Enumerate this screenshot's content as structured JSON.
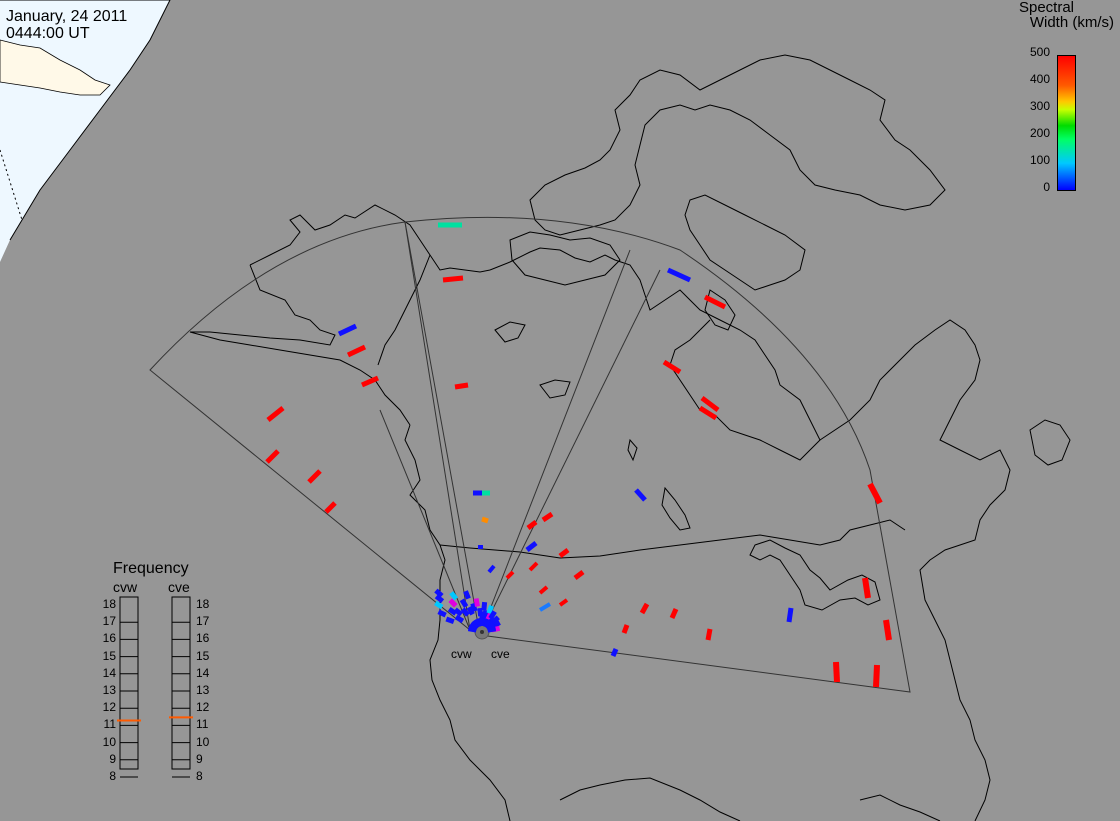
{
  "header": {
    "date": "January, 24 2011",
    "time": "0444:00 UT"
  },
  "legend": {
    "title_line1": "Spectral",
    "title_line2": "Width (km/s)",
    "ticks": [
      "500",
      "400",
      "300",
      "200",
      "100",
      "0"
    ],
    "range": [
      0,
      500
    ]
  },
  "frequency": {
    "title": "Frequency",
    "radars": [
      "cvw",
      "cve"
    ],
    "ticks": [
      "18",
      "17",
      "16",
      "15",
      "14",
      "13",
      "12",
      "11",
      "10",
      "9",
      "8"
    ],
    "values_mhz": {
      "cvw": 10.6,
      "cve": 10.8
    },
    "indicator_color": "#ff5a00"
  },
  "sites": {
    "west": "cvw",
    "east": "cve"
  },
  "colors": {
    "background": "#969696",
    "polar": "#eef8ff",
    "red": "#ff0000",
    "blue": "#1010ff",
    "teal": "#00e0a0",
    "orange": "#ff8c00"
  }
}
